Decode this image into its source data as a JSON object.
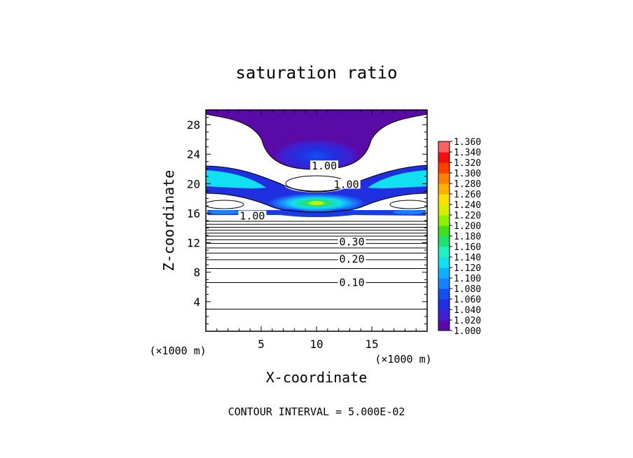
{
  "chart_data": {
    "type": "heatmap",
    "title": "saturation ratio",
    "xlabel": "X-coordinate",
    "ylabel": "Z-coordinate",
    "x_unit": "(×1000 m)",
    "y_unit": "(×1000 m)",
    "xlim": [
      0,
      20
    ],
    "ylim": [
      0,
      30
    ],
    "x_ticks": [
      5,
      10,
      15
    ],
    "y_ticks": [
      4,
      8,
      12,
      16,
      20,
      24,
      28
    ],
    "footer": "CONTOUR INTERVAL = 5.000E-02",
    "colorbar": {
      "levels": [
        "1.000",
        "1.020",
        "1.040",
        "1.060",
        "1.080",
        "1.100",
        "1.120",
        "1.140",
        "1.160",
        "1.180",
        "1.200",
        "1.220",
        "1.240",
        "1.260",
        "1.280",
        "1.300",
        "1.320",
        "1.340",
        "1.360"
      ],
      "colors": [
        "#5a0aa6",
        "#3f1fd0",
        "#2030e0",
        "#1450f0",
        "#1a80ff",
        "#10b0ff",
        "#10e0f0",
        "#20f0c0",
        "#20e070",
        "#40e020",
        "#90f000",
        "#d8f000",
        "#ffe000",
        "#ffb000",
        "#ff8000",
        "#ff4000",
        "#f01010",
        "#ff6060",
        "#ff9898"
      ]
    },
    "contour_labels": [
      {
        "text": "1.00",
        "x": 10.7,
        "z": 22.3
      },
      {
        "text": "1.00",
        "x": 12.7,
        "z": 19.8
      },
      {
        "text": "1.00",
        "x": 4.2,
        "z": 15.5
      },
      {
        "text": "0.30",
        "x": 13.2,
        "z": 12.0
      },
      {
        "text": "0.20",
        "x": 13.2,
        "z": 9.7
      },
      {
        "text": "0.10",
        "x": 13.2,
        "z": 6.5
      }
    ],
    "horizontal_contours_z": [
      3.0,
      6.6,
      8.5,
      9.7,
      10.6,
      11.3,
      11.9,
      12.4,
      12.9,
      13.3,
      13.7,
      14.1,
      14.5,
      14.9
    ]
  }
}
